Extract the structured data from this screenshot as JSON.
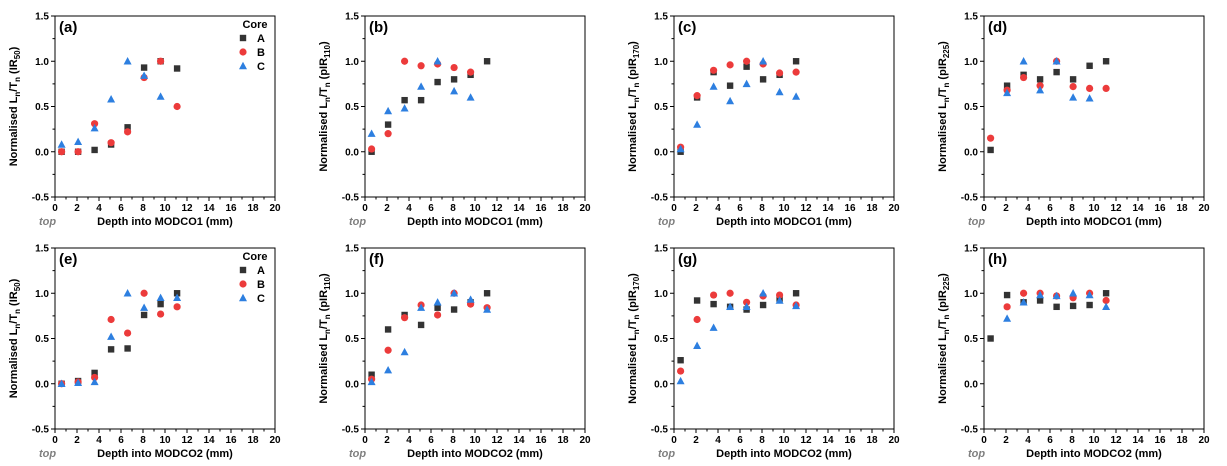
{
  "figure": {
    "series_styles": [
      {
        "name": "A",
        "color": "#333333",
        "marker": "square"
      },
      {
        "name": "B",
        "color": "#ec3b3b",
        "marker": "circle"
      },
      {
        "name": "C",
        "color": "#2d7fe0",
        "marker": "triangle"
      }
    ],
    "legend_title": "Core",
    "top_marker": "top"
  },
  "chart_data": [
    {
      "type": "scatter",
      "panel": "(a)",
      "xlabel": "Depth into MODCO1 (mm)",
      "ylabel": "Normalised Ln/Tn (IR50)",
      "ylabel_parts": [
        "Normalised L",
        "n",
        "/T",
        "n",
        " (IR",
        "50",
        ")"
      ],
      "xlim": [
        0,
        20
      ],
      "ylim": [
        -0.5,
        1.5
      ],
      "xticks": [
        "0",
        "2",
        "4",
        "6",
        "8",
        "10",
        "12",
        "14",
        "16",
        "18",
        "20"
      ],
      "yticks": [
        "-0.5",
        "0.0",
        "0.5",
        "1.0",
        "1.5"
      ],
      "legend": {
        "title": "Core",
        "entries": [
          "A",
          "B",
          "C"
        ],
        "position": "top-right"
      },
      "series": [
        {
          "name": "A",
          "x": [
            0.6,
            2.1,
            3.6,
            5.1,
            6.6,
            8.1,
            9.6,
            11.1
          ],
          "y": [
            0.0,
            0.0,
            0.02,
            0.08,
            0.27,
            0.93,
            1.0,
            0.92
          ]
        },
        {
          "name": "B",
          "x": [
            0.6,
            2.1,
            3.6,
            5.1,
            6.6,
            8.1,
            9.6,
            11.1
          ],
          "y": [
            0.0,
            0.0,
            0.31,
            0.1,
            0.22,
            0.82,
            1.0,
            0.5
          ]
        },
        {
          "name": "C",
          "x": [
            0.6,
            2.1,
            3.6,
            5.1,
            6.6,
            8.1,
            9.6
          ],
          "y": [
            0.08,
            0.11,
            0.26,
            0.58,
            1.0,
            0.84,
            0.61
          ]
        }
      ]
    },
    {
      "type": "scatter",
      "panel": "(b)",
      "xlabel": "Depth into MODCO1 (mm)",
      "ylabel": "Normalised Ln/Tn (pIR110)",
      "ylabel_parts": [
        "Normalised L",
        "n",
        "/T",
        "n",
        " (pIR",
        "110",
        ")"
      ],
      "xlim": [
        0,
        20
      ],
      "ylim": [
        -0.5,
        1.5
      ],
      "xticks": [
        "0",
        "2",
        "4",
        "6",
        "8",
        "10",
        "12",
        "14",
        "16",
        "18",
        "20"
      ],
      "yticks": [
        "-0.5",
        "0.0",
        "0.5",
        "1.0",
        "1.5"
      ],
      "series": [
        {
          "name": "A",
          "x": [
            0.6,
            2.1,
            3.6,
            5.1,
            6.6,
            8.1,
            9.6,
            11.1
          ],
          "y": [
            0.0,
            0.3,
            0.57,
            0.57,
            0.77,
            0.8,
            0.85,
            1.0
          ]
        },
        {
          "name": "B",
          "x": [
            0.6,
            2.1,
            3.6,
            5.1,
            6.6,
            8.1,
            9.6
          ],
          "y": [
            0.03,
            0.2,
            1.0,
            0.95,
            0.97,
            0.93,
            0.88
          ]
        },
        {
          "name": "C",
          "x": [
            0.6,
            2.1,
            3.6,
            5.1,
            6.6,
            8.1,
            9.6
          ],
          "y": [
            0.2,
            0.45,
            0.48,
            0.72,
            1.0,
            0.67,
            0.6
          ]
        }
      ]
    },
    {
      "type": "scatter",
      "panel": "(c)",
      "xlabel": "Depth into MODCO1 (mm)",
      "ylabel": "Normalised Ln/Tn (pIR170)",
      "ylabel_parts": [
        "Normalised L",
        "n",
        "/T",
        "n",
        " (pIR",
        "170",
        ")"
      ],
      "xlim": [
        0,
        20
      ],
      "ylim": [
        -0.5,
        1.5
      ],
      "xticks": [
        "0",
        "2",
        "4",
        "6",
        "8",
        "10",
        "12",
        "14",
        "16",
        "18",
        "20"
      ],
      "yticks": [
        "-0.5",
        "0.0",
        "0.5",
        "1.0",
        "1.5"
      ],
      "series": [
        {
          "name": "A",
          "x": [
            0.6,
            2.1,
            3.6,
            5.1,
            6.6,
            8.1,
            9.6,
            11.1
          ],
          "y": [
            0.0,
            0.6,
            0.88,
            0.73,
            0.94,
            0.8,
            0.85,
            1.0
          ]
        },
        {
          "name": "B",
          "x": [
            0.6,
            2.1,
            3.6,
            5.1,
            6.6,
            8.1,
            9.6,
            11.1
          ],
          "y": [
            0.05,
            0.62,
            0.9,
            0.96,
            1.0,
            0.97,
            0.87,
            0.88
          ]
        },
        {
          "name": "C",
          "x": [
            0.6,
            2.1,
            3.6,
            5.1,
            6.6,
            8.1,
            9.6,
            11.1
          ],
          "y": [
            0.03,
            0.3,
            0.72,
            0.56,
            0.75,
            1.0,
            0.66,
            0.61
          ]
        }
      ]
    },
    {
      "type": "scatter",
      "panel": "(d)",
      "xlabel": "Depth into MODCO1 (mm)",
      "ylabel": "Normalised Ln/Tn (pIR225)",
      "ylabel_parts": [
        "Normalised L",
        "n",
        "/T",
        "n",
        " (pIR",
        "225",
        ")"
      ],
      "xlim": [
        0,
        20
      ],
      "ylim": [
        -0.5,
        1.5
      ],
      "xticks": [
        "0",
        "2",
        "4",
        "6",
        "8",
        "10",
        "12",
        "14",
        "16",
        "18",
        "20"
      ],
      "yticks": [
        "-0.5",
        "0.0",
        "0.5",
        "1.0",
        "1.5"
      ],
      "series": [
        {
          "name": "A",
          "x": [
            0.6,
            2.1,
            3.6,
            5.1,
            6.6,
            8.1,
            9.6,
            11.1
          ],
          "y": [
            0.02,
            0.73,
            0.85,
            0.8,
            0.88,
            0.8,
            0.95,
            1.0
          ]
        },
        {
          "name": "B",
          "x": [
            0.6,
            2.1,
            3.6,
            5.1,
            6.6,
            8.1,
            9.6,
            11.1
          ],
          "y": [
            0.15,
            0.68,
            0.82,
            0.73,
            1.0,
            0.72,
            0.7,
            0.7
          ]
        },
        {
          "name": "C",
          "x": [
            2.1,
            3.6,
            5.1,
            6.6,
            8.1,
            9.6
          ],
          "y": [
            0.65,
            1.0,
            0.68,
            1.0,
            0.6,
            0.59
          ]
        }
      ]
    },
    {
      "type": "scatter",
      "panel": "(e)",
      "xlabel": "Depth into MODCO2 (mm)",
      "ylabel": "Normalised Ln/Tn (IR50)",
      "ylabel_parts": [
        "Normalised L",
        "n",
        "/T",
        "n",
        " (IR",
        "50",
        ")"
      ],
      "xlim": [
        0,
        20
      ],
      "ylim": [
        -0.5,
        1.5
      ],
      "xticks": [
        "0",
        "2",
        "4",
        "6",
        "8",
        "10",
        "12",
        "14",
        "16",
        "18",
        "20"
      ],
      "yticks": [
        "-0.5",
        "0.0",
        "0.5",
        "1.0",
        "1.5"
      ],
      "legend": {
        "title": "Core",
        "entries": [
          "A",
          "B",
          "C"
        ],
        "position": "top-right"
      },
      "series": [
        {
          "name": "A",
          "x": [
            0.6,
            2.1,
            3.6,
            5.1,
            6.6,
            8.1,
            9.6,
            11.1
          ],
          "y": [
            0.0,
            0.03,
            0.12,
            0.38,
            0.39,
            0.76,
            0.88,
            1.0
          ]
        },
        {
          "name": "B",
          "x": [
            0.6,
            2.1,
            3.6,
            5.1,
            6.6,
            8.1,
            9.6,
            11.1
          ],
          "y": [
            0.0,
            0.02,
            0.07,
            0.71,
            0.56,
            1.0,
            0.77,
            0.85
          ]
        },
        {
          "name": "C",
          "x": [
            0.6,
            2.1,
            3.6,
            5.1,
            6.6,
            8.1,
            9.6,
            11.1
          ],
          "y": [
            0.0,
            0.01,
            0.02,
            0.52,
            1.0,
            0.84,
            0.95,
            0.95
          ]
        }
      ]
    },
    {
      "type": "scatter",
      "panel": "(f)",
      "xlabel": "Depth into MODCO2 (mm)",
      "ylabel": "Normalised Ln/Tn (pIR110)",
      "ylabel_parts": [
        "Normalised L",
        "n",
        "/T",
        "n",
        " (pIR",
        "110",
        ")"
      ],
      "xlim": [
        0,
        20
      ],
      "ylim": [
        -0.5,
        1.5
      ],
      "xticks": [
        "0",
        "2",
        "4",
        "6",
        "8",
        "10",
        "12",
        "14",
        "16",
        "18",
        "20"
      ],
      "yticks": [
        "-0.5",
        "0.0",
        "0.5",
        "1.0",
        "1.5"
      ],
      "series": [
        {
          "name": "A",
          "x": [
            0.6,
            2.1,
            3.6,
            5.1,
            6.6,
            8.1,
            9.6,
            11.1
          ],
          "y": [
            0.1,
            0.6,
            0.76,
            0.65,
            0.84,
            0.82,
            0.9,
            1.0
          ]
        },
        {
          "name": "B",
          "x": [
            0.6,
            2.1,
            3.6,
            5.1,
            6.6,
            8.1,
            9.6,
            11.1
          ],
          "y": [
            0.05,
            0.37,
            0.73,
            0.87,
            0.76,
            1.0,
            0.88,
            0.84
          ]
        },
        {
          "name": "C",
          "x": [
            0.6,
            2.1,
            3.6,
            5.1,
            6.6,
            8.1,
            9.6,
            11.1
          ],
          "y": [
            0.02,
            0.15,
            0.35,
            0.84,
            0.9,
            1.0,
            0.93,
            0.82
          ]
        }
      ]
    },
    {
      "type": "scatter",
      "panel": "(g)",
      "xlabel": "Depth into MODCO2 (mm)",
      "ylabel": "Normalised Ln/Tn (pIR170)",
      "ylabel_parts": [
        "Normalised L",
        "n",
        "/T",
        "n",
        " (pIR",
        "170",
        ")"
      ],
      "xlim": [
        0,
        20
      ],
      "ylim": [
        -0.5,
        1.5
      ],
      "xticks": [
        "0",
        "2",
        "4",
        "6",
        "8",
        "10",
        "12",
        "14",
        "16",
        "18",
        "20"
      ],
      "yticks": [
        "-0.5",
        "0.0",
        "0.5",
        "1.0",
        "1.5"
      ],
      "series": [
        {
          "name": "A",
          "x": [
            0.6,
            2.1,
            3.6,
            5.1,
            6.6,
            8.1,
            9.6,
            11.1
          ],
          "y": [
            0.26,
            0.92,
            0.88,
            0.85,
            0.82,
            0.87,
            0.94,
            1.0
          ]
        },
        {
          "name": "B",
          "x": [
            0.6,
            2.1,
            3.6,
            5.1,
            6.6,
            8.1,
            9.6,
            11.1
          ],
          "y": [
            0.14,
            0.71,
            0.98,
            1.0,
            0.9,
            0.97,
            0.98,
            0.87
          ]
        },
        {
          "name": "C",
          "x": [
            0.6,
            2.1,
            3.6,
            5.1,
            6.6,
            8.1,
            9.6,
            11.1
          ],
          "y": [
            0.03,
            0.42,
            0.62,
            0.85,
            0.85,
            1.0,
            0.92,
            0.86
          ]
        }
      ]
    },
    {
      "type": "scatter",
      "panel": "(h)",
      "xlabel": "Depth into MODCO2 (mm)",
      "ylabel": "Normalised Ln/Tn (pIR225)",
      "ylabel_parts": [
        "Normalised L",
        "n",
        "/T",
        "n",
        " (pIR",
        "225",
        ")"
      ],
      "xlim": [
        0,
        20
      ],
      "ylim": [
        -0.5,
        1.5
      ],
      "xticks": [
        "0",
        "2",
        "4",
        "6",
        "8",
        "10",
        "12",
        "14",
        "16",
        "18",
        "20"
      ],
      "yticks": [
        "-0.5",
        "0.0",
        "0.5",
        "1.0",
        "1.5"
      ],
      "series": [
        {
          "name": "A",
          "x": [
            0.6,
            2.1,
            3.6,
            5.1,
            6.6,
            8.1,
            9.6,
            11.1
          ],
          "y": [
            0.5,
            0.98,
            0.9,
            0.92,
            0.85,
            0.86,
            0.87,
            1.0
          ]
        },
        {
          "name": "B",
          "x": [
            2.1,
            3.6,
            5.1,
            6.6,
            8.1,
            9.6,
            11.1
          ],
          "y": [
            0.85,
            1.0,
            1.0,
            0.97,
            0.95,
            1.0,
            0.92
          ]
        },
        {
          "name": "C",
          "x": [
            2.1,
            3.6,
            5.1,
            6.6,
            8.1,
            9.6,
            11.1
          ],
          "y": [
            0.72,
            0.9,
            0.98,
            0.97,
            1.0,
            0.98,
            0.85
          ]
        }
      ]
    }
  ]
}
